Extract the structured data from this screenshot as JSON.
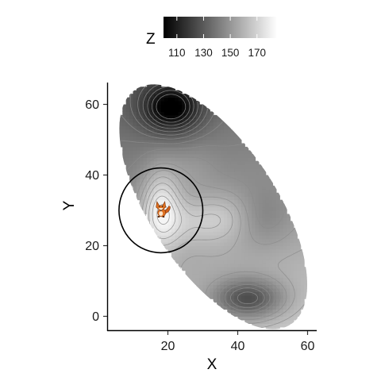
{
  "chart_data": {
    "type": "heatmap",
    "title": "",
    "xlabel": "X",
    "ylabel": "Y",
    "xlim": [
      2,
      62
    ],
    "ylim": [
      -4,
      66
    ],
    "x_ticks": [
      "20",
      "40",
      "60"
    ],
    "y_ticks": [
      "0",
      "20",
      "40",
      "60"
    ],
    "grid": false,
    "legend": {
      "title": "Z",
      "position": "top",
      "range": [
        100,
        185
      ],
      "ticks": [
        "110",
        "130",
        "150",
        "170"
      ],
      "tick_values": [
        110,
        130,
        150,
        170
      ]
    },
    "surface": {
      "domain_shape": "ellipse",
      "domain_center": [
        33,
        31
      ],
      "domain_semi_axes": [
        40,
        18
      ],
      "domain_rotation_deg": -56,
      "base_value": 152,
      "trend_per_unit_x": 0.12,
      "trend_per_unit_y": -0.45,
      "features": [
        {
          "kind": "peak",
          "center": [
            18,
            31
          ],
          "spread": [
            4,
            8
          ],
          "amplitude": 30
        },
        {
          "kind": "peak",
          "center": [
            28,
            27
          ],
          "spread": [
            9,
            5
          ],
          "amplitude": 14
        },
        {
          "kind": "peak",
          "center": [
            37,
            29
          ],
          "spread": [
            6,
            5
          ],
          "amplitude": 8
        },
        {
          "kind": "trough",
          "center": [
            21,
            59
          ],
          "spread": [
            6,
            5
          ],
          "amplitude": -42
        },
        {
          "kind": "trough",
          "center": [
            43,
            5
          ],
          "spread": [
            7,
            4
          ],
          "amplitude": -38
        },
        {
          "kind": "trough",
          "center": [
            47,
            28
          ],
          "spread": [
            6,
            6
          ],
          "amplitude": -10
        },
        {
          "kind": "peak",
          "center": [
            27,
            42
          ],
          "spread": [
            5,
            5
          ],
          "amplitude": 6
        }
      ]
    },
    "annotations": [
      {
        "kind": "circle",
        "center": [
          18,
          30
        ],
        "radius": 12
      },
      {
        "kind": "marker",
        "icon": "fox-icon",
        "position": [
          18,
          30
        ]
      }
    ],
    "colors": {
      "low": "#000000",
      "high": "#ffffff",
      "contour": "#8c8c8c",
      "circle": "#000000"
    }
  }
}
